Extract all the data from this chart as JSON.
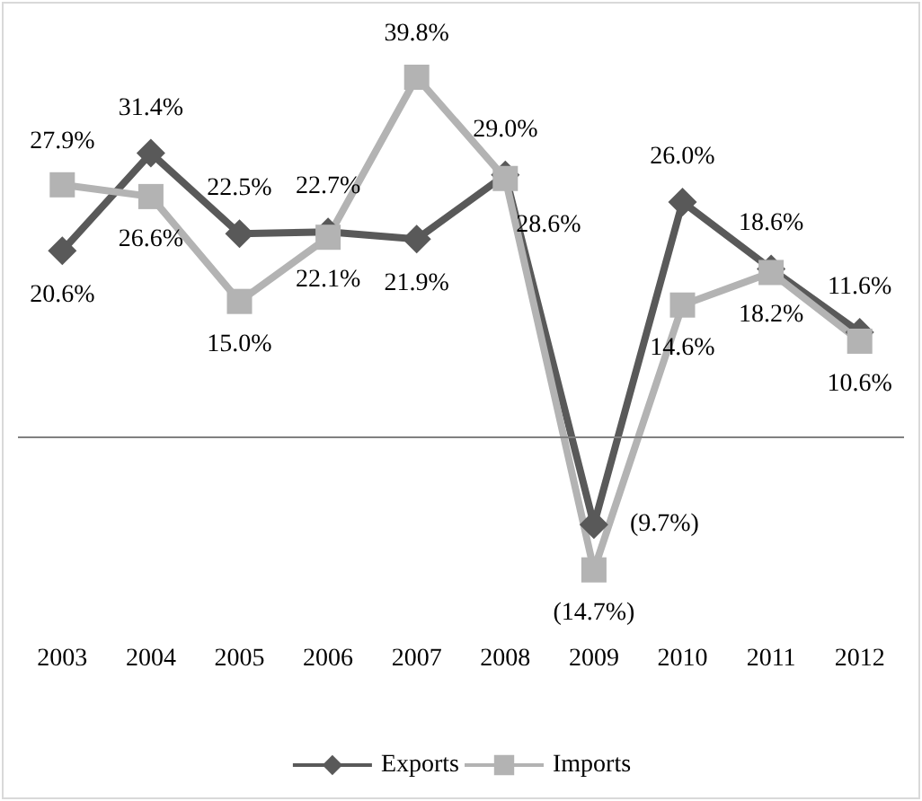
{
  "chart_data": {
    "type": "line",
    "categories": [
      "2003",
      "2004",
      "2005",
      "2006",
      "2007",
      "2008",
      "2009",
      "2010",
      "2011",
      "2012"
    ],
    "series": [
      {
        "name": "Exports",
        "color": "#595959",
        "marker": "diamond",
        "values": [
          20.6,
          31.4,
          22.5,
          22.7,
          21.9,
          29.0,
          -9.7,
          26.0,
          18.6,
          11.6
        ],
        "value_labels": [
          "20.6%",
          "31.4%",
          "22.5%",
          "22.7%",
          "21.9%",
          "29.0%",
          "(9.7%)",
          "26.0%",
          "18.6%",
          "11.6%"
        ]
      },
      {
        "name": "Imports",
        "color": "#b3b3b3",
        "marker": "square",
        "values": [
          27.9,
          26.6,
          15.0,
          22.1,
          39.8,
          28.6,
          -14.7,
          14.6,
          18.2,
          10.6
        ],
        "value_labels": [
          "27.9%",
          "26.6%",
          "15.0%",
          "22.1%",
          "39.8%",
          "28.6%",
          "(14.7%)",
          "14.6%",
          "18.2%",
          "10.6%"
        ]
      }
    ],
    "legend": "bottom",
    "grid": false
  }
}
